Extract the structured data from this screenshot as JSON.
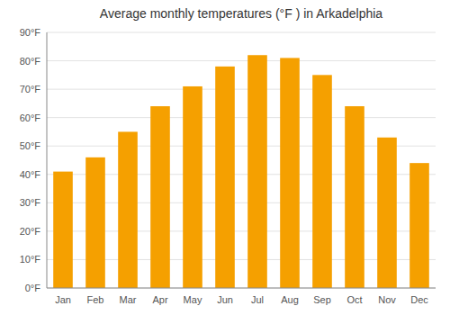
{
  "chart_data": {
    "type": "bar",
    "title": "Average monthly temperatures (°F ) in Arkadelphia",
    "categories": [
      "Jan",
      "Feb",
      "Mar",
      "Apr",
      "May",
      "Jun",
      "Jul",
      "Aug",
      "Sep",
      "Oct",
      "Nov",
      "Dec"
    ],
    "values": [
      41,
      46,
      55,
      64,
      71,
      78,
      82,
      81,
      75,
      64,
      53,
      44
    ],
    "color": "#F5A000",
    "ylim": [
      0,
      90
    ],
    "yticks": [
      {
        "value": 0,
        "label": "0°F"
      },
      {
        "value": 10,
        "label": "10°F"
      },
      {
        "value": 20,
        "label": "20°F"
      },
      {
        "value": 30,
        "label": "30°F"
      },
      {
        "value": 40,
        "label": "40°F"
      },
      {
        "value": 50,
        "label": "50°F"
      },
      {
        "value": 60,
        "label": "60°F"
      },
      {
        "value": 70,
        "label": "70°F"
      },
      {
        "value": 80,
        "label": "80°F"
      },
      {
        "value": 90,
        "label": "90°F"
      }
    ],
    "grid": true
  }
}
